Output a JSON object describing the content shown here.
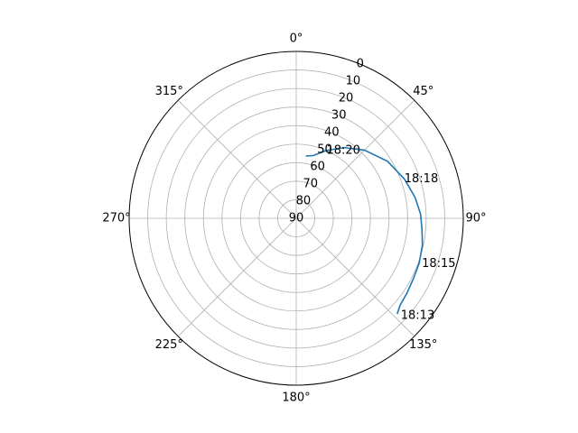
{
  "chart_data": {
    "type": "line",
    "projection": "polar",
    "title": "",
    "theta_zero_location": "N",
    "theta_direction": "clockwise",
    "theta_tick_labels": [
      "0°",
      "45°",
      "90°",
      "135°",
      "180°",
      "225°",
      "270°",
      "315°"
    ],
    "r_axis": {
      "inverted": true,
      "range": [
        90,
        0
      ],
      "tick_labels": [
        "0",
        "10",
        "20",
        "30",
        "40",
        "50",
        "60",
        "70",
        "80",
        "90"
      ]
    },
    "grid": true,
    "series": [
      {
        "color": "#1f77b4",
        "points": [
          {
            "azimuth": 133.5,
            "elevation": 15
          },
          {
            "azimuth": 130,
            "elevation": 17
          },
          {
            "azimuth": 124,
            "elevation": 18
          },
          {
            "azimuth": 117,
            "elevation": 19
          },
          {
            "azimuth": 110,
            "elevation": 19.5
          },
          {
            "azimuth": 102,
            "elevation": 20.5
          },
          {
            "azimuth": 95,
            "elevation": 22
          },
          {
            "azimuth": 88,
            "elevation": 23
          },
          {
            "azimuth": 80,
            "elevation": 25
          },
          {
            "azimuth": 70,
            "elevation": 28
          },
          {
            "azimuth": 58,
            "elevation": 32
          },
          {
            "azimuth": 45,
            "elevation": 38
          },
          {
            "azimuth": 34,
            "elevation": 44
          },
          {
            "azimuth": 24,
            "elevation": 50
          },
          {
            "azimuth": 15,
            "elevation": 55
          },
          {
            "azimuth": 8.8,
            "elevation": 56
          }
        ]
      }
    ],
    "annotations": [
      {
        "text": "18:13",
        "azimuth": 133,
        "elevation": 13
      },
      {
        "text": "18:15",
        "azimuth": 110,
        "elevation": 18
      },
      {
        "text": "18:18",
        "azimuth": 70,
        "elevation": 28
      },
      {
        "text": "18:20",
        "azimuth": 24,
        "elevation": 50
      }
    ]
  }
}
